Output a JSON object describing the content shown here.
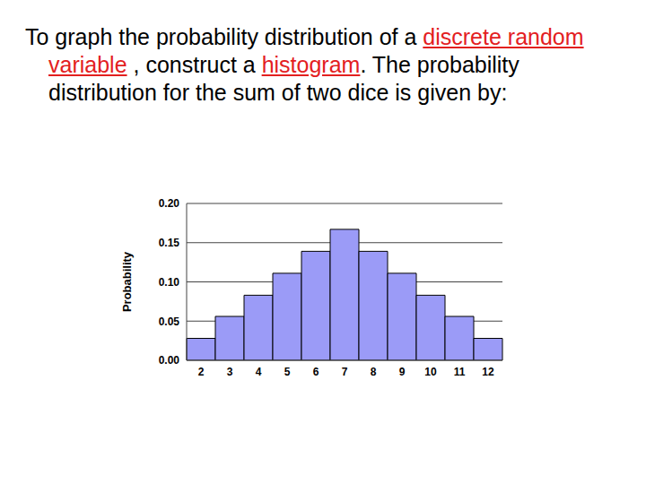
{
  "text": [
    {
      "text": "To graph the probability distribution of a "
    },
    {
      "text": "discrete random variable",
      "color": "#e3201f",
      "underline": true
    },
    {
      "text": " , construct a "
    },
    {
      "text": "histogram",
      "color": "#e3201f",
      "underline": true
    },
    {
      "text": ".  The probability distribution for the sum of two dice is given by:"
    }
  ],
  "chart_data": {
    "type": "bar",
    "ylabel": "Probability",
    "categories": [
      "2",
      "3",
      "4",
      "5",
      "6",
      "7",
      "8",
      "9",
      "10",
      "11",
      "12"
    ],
    "values": [
      0.028,
      0.056,
      0.083,
      0.111,
      0.139,
      0.167,
      0.139,
      0.111,
      0.083,
      0.056,
      0.028
    ],
    "color": "#9b9bf7",
    "ylim": [
      0,
      0.2
    ],
    "yticks": [
      {
        "value": 0,
        "label": "0.00"
      },
      0.05,
      {
        "value": 0.1,
        "label": "0.10"
      },
      0.15,
      {
        "value": 0.2,
        "label": "0.20"
      }
    ],
    "grid": true
  }
}
